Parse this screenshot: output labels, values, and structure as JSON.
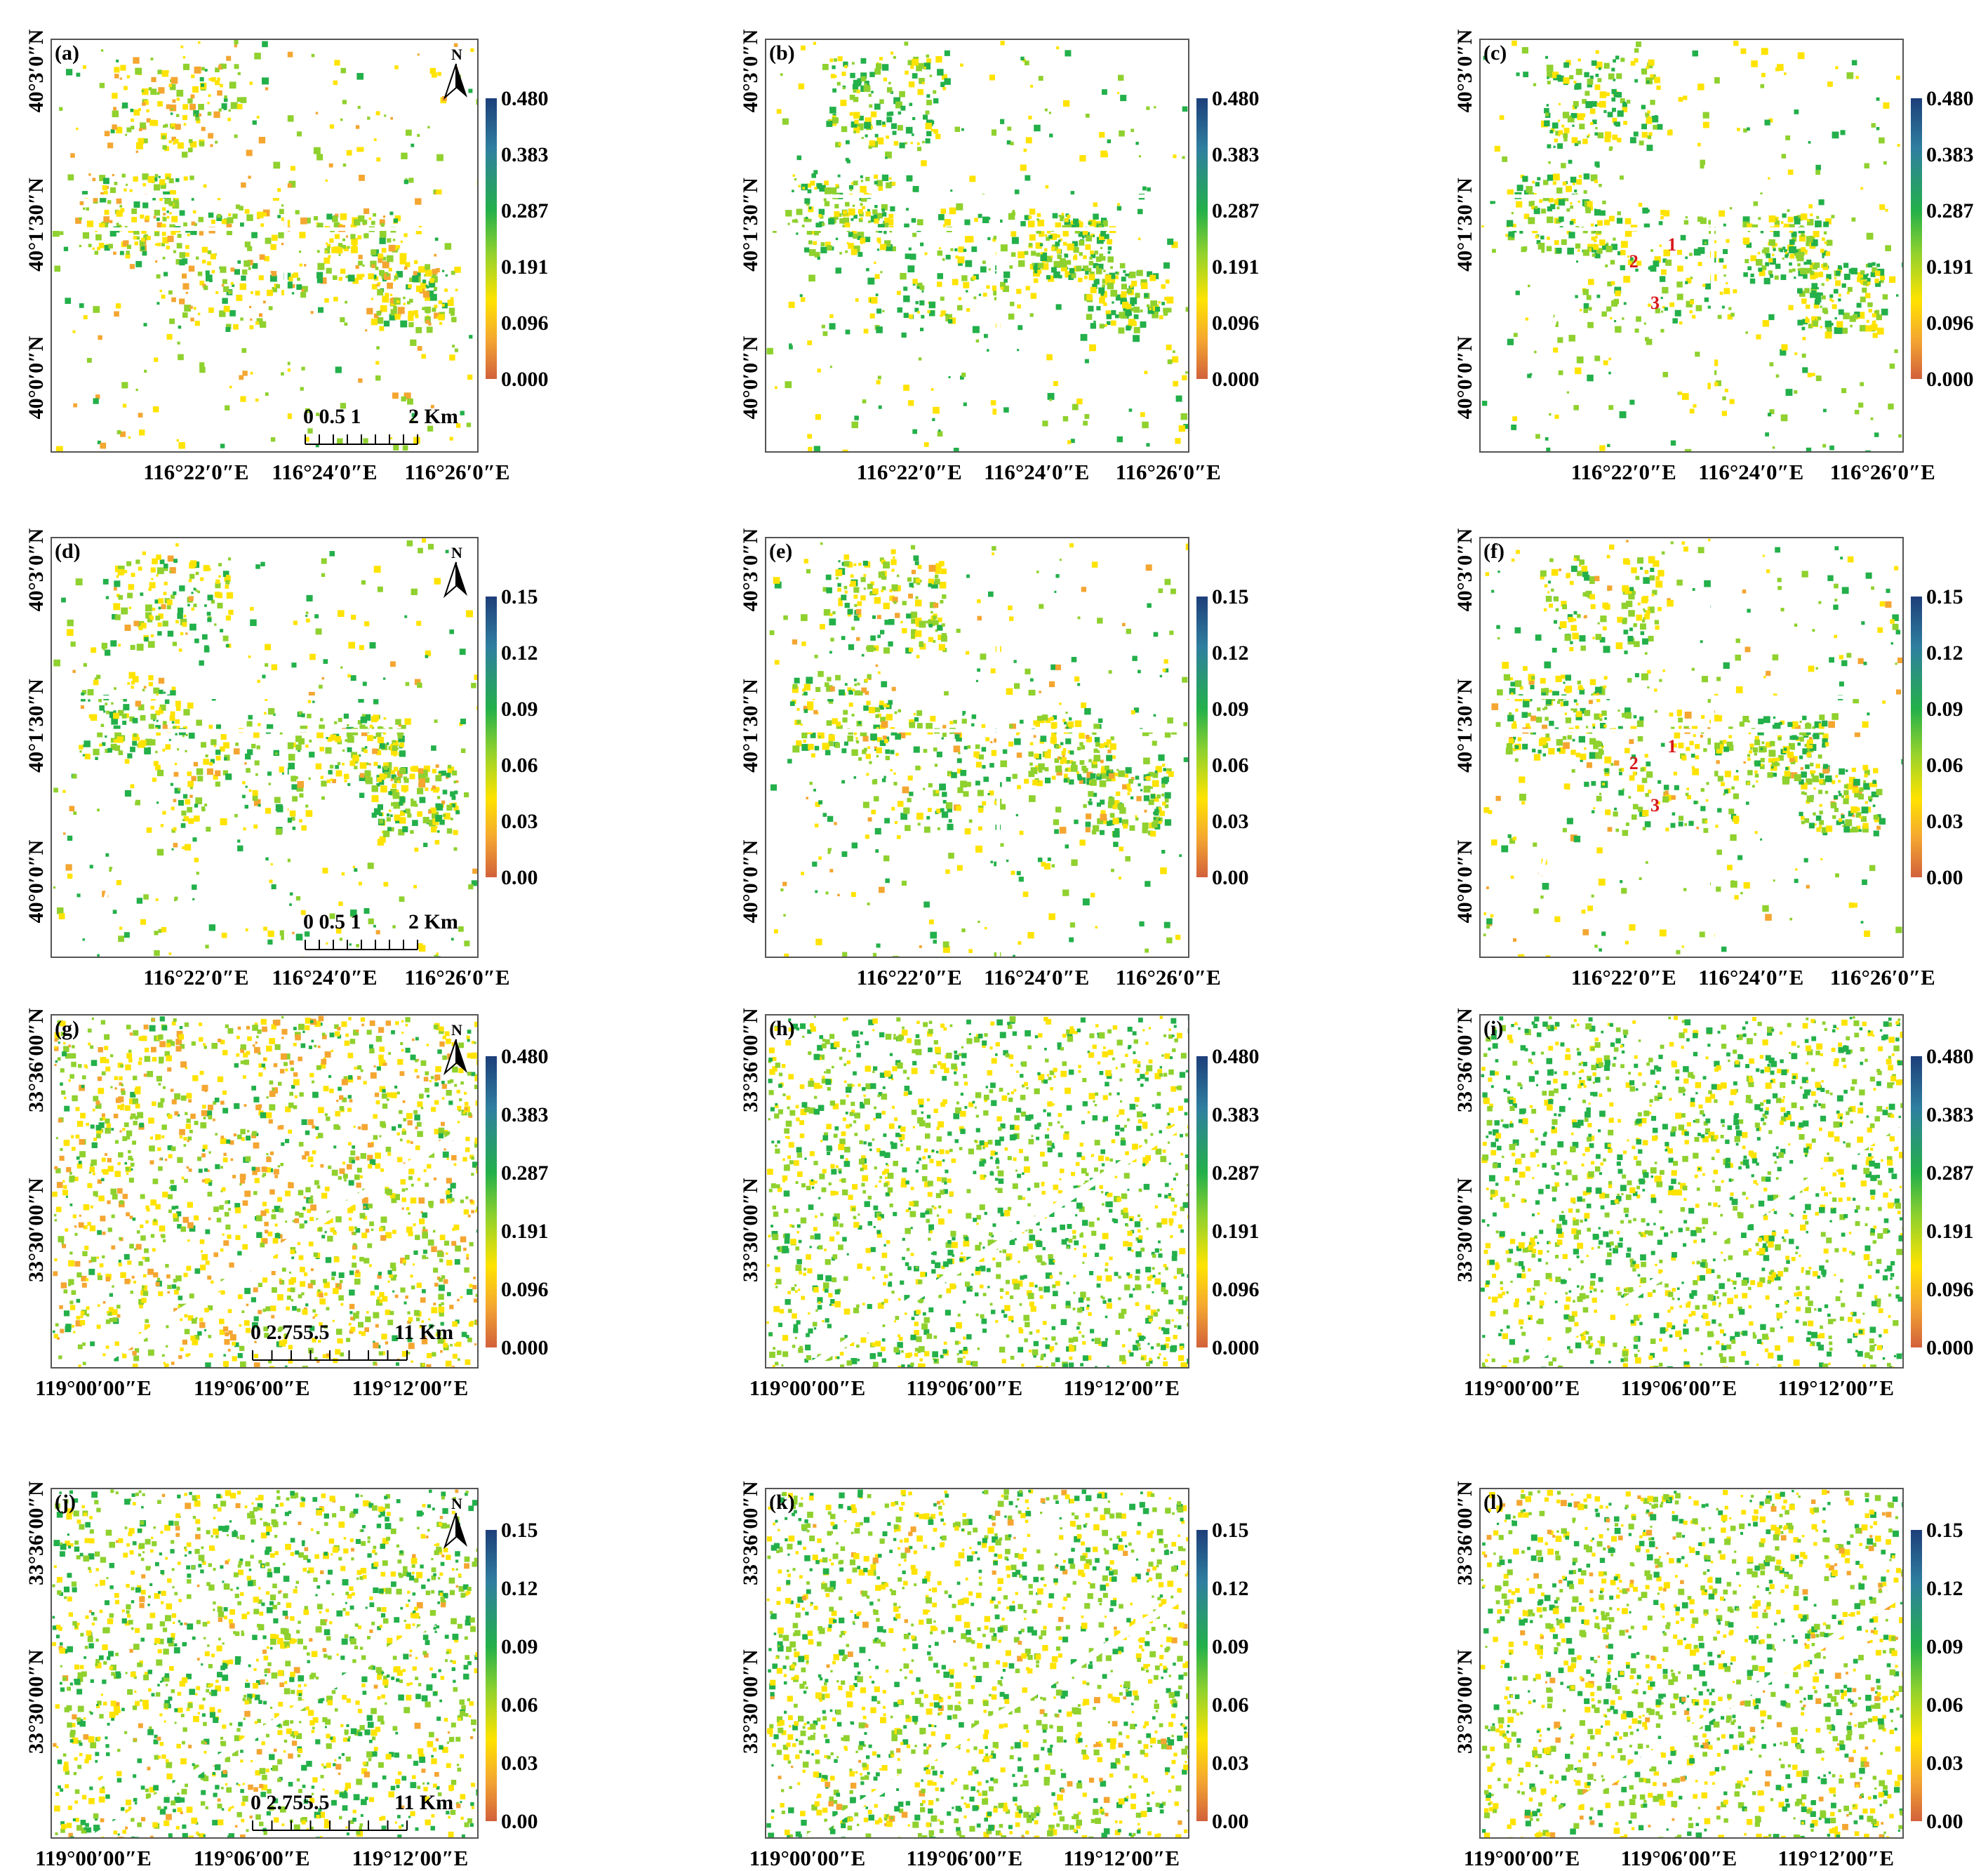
{
  "colorbars": {
    "pv_ticks": [
      "0.480",
      "0.383",
      "0.287",
      "0.191",
      "0.096",
      "0.000"
    ],
    "sd_ticks": [
      "0.15",
      "0.12",
      "0.09",
      "0.06",
      "0.03",
      "0.00"
    ],
    "colors": [
      "#1d3f7a",
      "#2f7fa0",
      "#23b04a",
      "#8fd12e",
      "#ffe300",
      "#f4a631",
      "#d2613b"
    ]
  },
  "beijing": {
    "lat_labels": [
      "40°3′0″N",
      "40°1′30″N",
      "40°0′0″N"
    ],
    "lon_labels": [
      "116°22′0″E",
      "116°24′0″E",
      "116°26′0″E"
    ],
    "scale_text": "0 0.5 1",
    "scale_end": "2 Km"
  },
  "suqian": {
    "lat_labels": [
      "33°36′00″N",
      "33°30′00″N"
    ],
    "lon_labels": [
      "119°00′00″E",
      "119°06′00″E",
      "119°12′00″E"
    ],
    "scale_text": "0 2.755.5",
    "scale_end": "11 Km"
  },
  "north_letter": "N",
  "markers": [
    "1",
    "2",
    "3"
  ],
  "panels": [
    {
      "label": "(a)",
      "region": "beijing",
      "bar": "pv"
    },
    {
      "label": "(b)",
      "region": "beijing",
      "bar": "pv"
    },
    {
      "label": "(c)",
      "region": "beijing",
      "bar": "pv"
    },
    {
      "label": "(d)",
      "region": "beijing",
      "bar": "sd"
    },
    {
      "label": "(e)",
      "region": "beijing",
      "bar": "sd"
    },
    {
      "label": "(f)",
      "region": "beijing",
      "bar": "sd"
    },
    {
      "label": "(g)",
      "region": "suqian",
      "bar": "pv"
    },
    {
      "label": "(h)",
      "region": "suqian",
      "bar": "pv"
    },
    {
      "label": "(i)",
      "region": "suqian",
      "bar": "pv"
    },
    {
      "label": "(j)",
      "region": "suqian",
      "bar": "sd"
    },
    {
      "label": "(k)",
      "region": "suqian",
      "bar": "sd"
    },
    {
      "label": "(l)",
      "region": "suqian",
      "bar": "sd"
    }
  ]
}
